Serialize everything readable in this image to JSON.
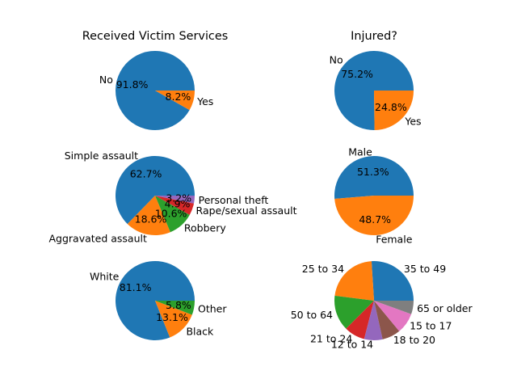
{
  "chart_data": [
    {
      "type": "pie",
      "title": "Received Victim Services",
      "labels": [
        "No",
        "Yes"
      ],
      "values": [
        91.8,
        8.2
      ],
      "pct_labels": [
        "91.8%",
        "8.2%"
      ],
      "colors": [
        "#1f77b4",
        "#ff7f0e"
      ]
    },
    {
      "type": "pie",
      "title": "Injured?",
      "labels": [
        "No",
        "Yes"
      ],
      "values": [
        75.2,
        24.8
      ],
      "pct_labels": [
        "75.2%",
        "24.8%"
      ],
      "colors": [
        "#1f77b4",
        "#ff7f0e"
      ]
    },
    {
      "type": "pie",
      "title": "",
      "labels": [
        "Simple assault",
        "Aggravated assault",
        "Robbery",
        "Rape/sexual assault",
        "Personal theft"
      ],
      "values": [
        62.7,
        18.6,
        10.6,
        4.9,
        3.2
      ],
      "pct_labels": [
        "62.7%",
        "18.6%",
        "10.6%",
        "4.9%",
        "3.2%"
      ],
      "colors": [
        "#1f77b4",
        "#ff7f0e",
        "#2ca02c",
        "#d62728",
        "#9467bd"
      ]
    },
    {
      "type": "pie",
      "title": "",
      "labels": [
        "Male",
        "Female"
      ],
      "values": [
        51.3,
        48.7
      ],
      "pct_labels": [
        "51.3%",
        "48.7%"
      ],
      "colors": [
        "#1f77b4",
        "#ff7f0e"
      ]
    },
    {
      "type": "pie",
      "title": "",
      "labels": [
        "White",
        "Black",
        "Other"
      ],
      "values": [
        81.1,
        13.1,
        5.8
      ],
      "pct_labels": [
        "81.1%",
        "13.1%",
        "5.8%"
      ],
      "colors": [
        "#1f77b4",
        "#ff7f0e",
        "#2ca02c"
      ]
    },
    {
      "type": "pie",
      "title": "",
      "labels": [
        "35 to 49",
        "25 to 34",
        "50 to 64",
        "21 to 24",
        "12 to 14",
        "18 to 20",
        "15 to 17",
        "65 or older"
      ],
      "values": [
        26.0,
        22.0,
        14.5,
        8.5,
        7.5,
        7.5,
        8.5,
        5.5
      ],
      "pct_labels": [],
      "colors": [
        "#1f77b4",
        "#ff7f0e",
        "#2ca02c",
        "#d62728",
        "#9467bd",
        "#8c564b",
        "#e377c2",
        "#7f7f7f"
      ]
    }
  ]
}
